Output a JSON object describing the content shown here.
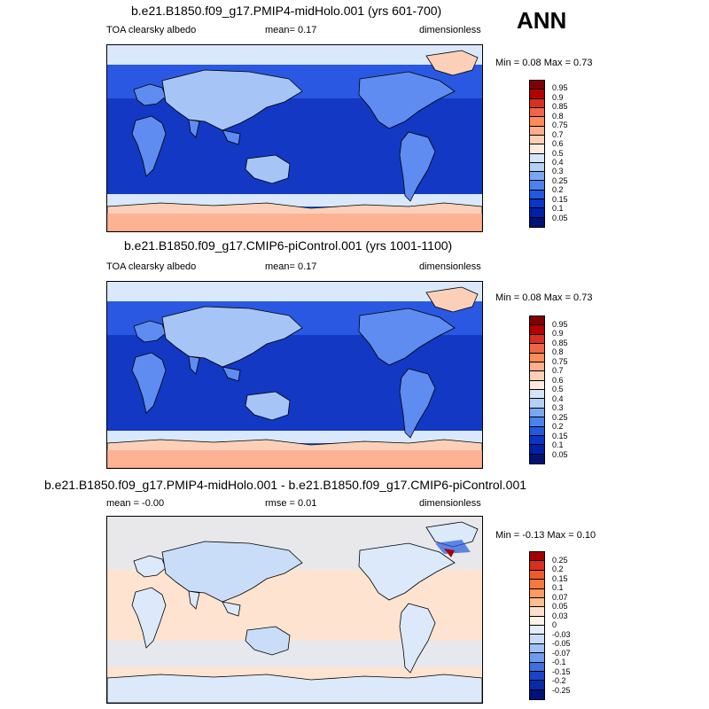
{
  "season": "ANN",
  "panels": [
    {
      "title": "b.e21.B1850.f09_g17.PMIP4-midHolo.001 (yrs 601-700)",
      "left_label": "TOA clearsky albedo",
      "center_label": "mean=  0.17",
      "right_label": "dimensionless",
      "minmax": "Min =  0.08 Max =  0.73",
      "bar_labels": [
        "0.95",
        "0.9",
        "0.85",
        "0.8",
        "0.75",
        "0.7",
        "0.6",
        "0.5",
        "0.4",
        "0.3",
        "0.25",
        "0.2",
        "0.15",
        "0.1",
        "0.05"
      ],
      "bar_colors": [
        "#7f0000",
        "#b30000",
        "#d7301f",
        "#ef6548",
        "#fc8d59",
        "#fdae8c",
        "#fdd0b5",
        "#fdebe0",
        "#d6e6f7",
        "#b4d0f5",
        "#7aa8f0",
        "#4c82ec",
        "#2458e0",
        "#0b35c8",
        "#0020a8",
        "#001273"
      ],
      "map_palette": {
        "ocean_deep": "#1238c4",
        "ocean_mid": "#2a58e2",
        "land_low": "#5e8cf0",
        "land_high": "#a6c5f6",
        "ice": "#fcd0b8",
        "ice_edge": "#fdaa8a",
        "sea_ice": "#d9e8fb"
      }
    },
    {
      "title": "b.e21.B1850.f09_g17.CMIP6-piControl.001 (yrs 1001-1100)",
      "left_label": "TOA clearsky albedo",
      "center_label": "mean=  0.17",
      "right_label": "dimensionless",
      "minmax": "Min =  0.08 Max =  0.73",
      "bar_labels": [
        "0.95",
        "0.9",
        "0.85",
        "0.8",
        "0.75",
        "0.7",
        "0.6",
        "0.5",
        "0.4",
        "0.3",
        "0.25",
        "0.2",
        "0.15",
        "0.1",
        "0.05"
      ],
      "bar_colors": [
        "#7f0000",
        "#b30000",
        "#d7301f",
        "#ef6548",
        "#fc8d59",
        "#fdae8c",
        "#fdd0b5",
        "#fdebe0",
        "#d6e6f7",
        "#b4d0f5",
        "#7aa8f0",
        "#4c82ec",
        "#2458e0",
        "#0b35c8",
        "#0020a8",
        "#001273"
      ],
      "map_palette": {
        "ocean_deep": "#1238c4",
        "ocean_mid": "#2a58e2",
        "land_low": "#5e8cf0",
        "land_high": "#a6c5f6",
        "ice": "#fcd0b8",
        "ice_edge": "#fdaa8a",
        "sea_ice": "#d9e8fb"
      }
    },
    {
      "title": "b.e21.B1850.f09_g17.PMIP4-midHolo.001 - b.e21.B1850.f09_g17.CMIP6-piControl.001",
      "left_label": "mean =  -0.00",
      "center_label": "rmse =  0.01",
      "right_label": "dimensionless",
      "minmax": "Min =  -0.13 Max =  0.10",
      "bar_labels": [
        "0.25",
        "0.2",
        "0.15",
        "0.1",
        "0.07",
        "0.05",
        "0.03",
        "0",
        "-0.03",
        "-0.05",
        "-0.07",
        "-0.1",
        "-0.15",
        "-0.2",
        "-0.25"
      ],
      "bar_colors": [
        "#a50000",
        "#d7301f",
        "#ef5a2a",
        "#f6783c",
        "#fb9a62",
        "#fdbd90",
        "#fde0cb",
        "#fdf1e8",
        "#e3eefa",
        "#c7dcf7",
        "#9fc1f3",
        "#6d9cec",
        "#3d6fe0",
        "#1a44c8",
        "#082aa6",
        "#00127a"
      ],
      "map_palette": {
        "ocean_deep": "#dbe9fa",
        "ocean_mid": "#fde3d0",
        "land_low": "#dbe9fa",
        "land_high": "#c9ddf8",
        "ice": "#dbe9fa",
        "ice_edge": "#2458e0",
        "sea_ice": "#7aa8f0"
      }
    }
  ]
}
